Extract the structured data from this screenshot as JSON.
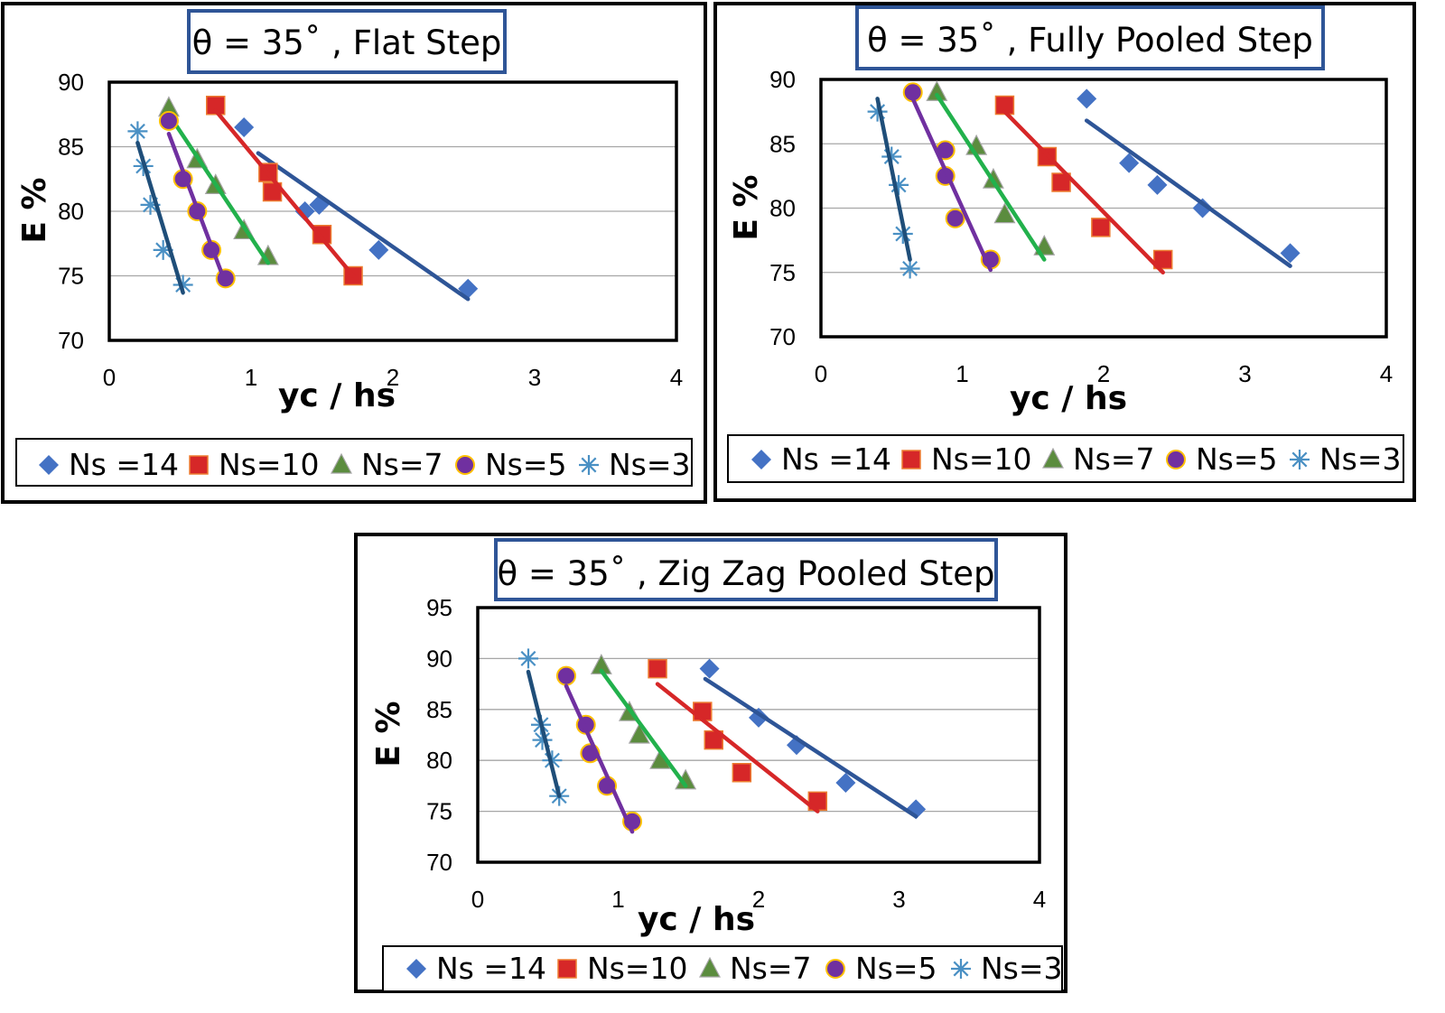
{
  "chart_data": [
    {
      "type": "scatter",
      "title": "θ = 35˚ , Flat Step",
      "xlabel": "yc / hs",
      "ylabel": "E %",
      "xlim": [
        0,
        4
      ],
      "ylim": [
        70,
        90
      ],
      "xticks": [
        0,
        1,
        2,
        3,
        4
      ],
      "yticks": [
        70,
        75,
        80,
        85,
        90
      ],
      "grid": "horizontal",
      "legend": "bottom",
      "series": [
        {
          "name": "Ns =14",
          "marker": "diamond",
          "color": "#4472C4",
          "line_color": "#2E5597",
          "x": [
            0.95,
            1.38,
            1.48,
            1.9,
            2.53
          ],
          "y": [
            86.5,
            80.0,
            80.5,
            77.0,
            74.0
          ],
          "trend": [
            [
              1.05,
              84.5
            ],
            [
              2.53,
              73.2
            ]
          ]
        },
        {
          "name": "Ns=10",
          "marker": "square",
          "color": "#D62728",
          "line_color": "#D62728",
          "x": [
            0.75,
            1.12,
            1.15,
            1.5,
            1.72
          ],
          "y": [
            88.2,
            83.0,
            81.5,
            78.2,
            75.0
          ],
          "trend": [
            [
              0.75,
              87.8
            ],
            [
              1.72,
              75.0
            ]
          ]
        },
        {
          "name": "Ns=7",
          "marker": "triangle",
          "color": "#5B8C3E",
          "line_color": "#22B14C",
          "x": [
            0.42,
            0.62,
            0.75,
            0.95,
            1.12
          ],
          "y": [
            88.0,
            84.0,
            82.0,
            78.5,
            76.5
          ],
          "trend": [
            [
              0.42,
              87.5
            ],
            [
              1.12,
              76.0
            ]
          ]
        },
        {
          "name": "Ns=5",
          "marker": "circle",
          "color": "#7030A0",
          "line_color": "#7030A0",
          "x": [
            0.42,
            0.52,
            0.62,
            0.72,
            0.82
          ],
          "y": [
            87.0,
            82.5,
            80.0,
            77.0,
            74.8
          ],
          "trend": [
            [
              0.42,
              86.0
            ],
            [
              0.8,
              75.0
            ]
          ]
        },
        {
          "name": "Ns=3",
          "marker": "asterisk",
          "color": "#4A90C4",
          "line_color": "#1F4E79",
          "x": [
            0.2,
            0.24,
            0.29,
            0.38,
            0.52
          ],
          "y": [
            86.2,
            83.5,
            80.5,
            77.0,
            74.3
          ],
          "trend": [
            [
              0.2,
              85.3
            ],
            [
              0.52,
              73.7
            ]
          ]
        }
      ]
    },
    {
      "type": "scatter",
      "title": "θ = 35˚ , Fully Pooled Step",
      "xlabel": "yc / hs",
      "ylabel": "E %",
      "xlim": [
        0,
        4
      ],
      "ylim": [
        70,
        90
      ],
      "xticks": [
        0,
        1,
        2,
        3,
        4
      ],
      "yticks": [
        70,
        75,
        80,
        85,
        90
      ],
      "grid": "horizontal",
      "legend": "bottom",
      "series": [
        {
          "name": "Ns =14",
          "marker": "diamond",
          "color": "#4472C4",
          "line_color": "#2E5597",
          "x": [
            1.88,
            2.18,
            2.38,
            2.7,
            3.32
          ],
          "y": [
            88.5,
            83.5,
            81.8,
            80.0,
            76.5
          ],
          "trend": [
            [
              1.88,
              86.8
            ],
            [
              3.32,
              75.5
            ]
          ]
        },
        {
          "name": "Ns=10",
          "marker": "square",
          "color": "#D62728",
          "line_color": "#D62728",
          "x": [
            1.3,
            1.6,
            1.7,
            1.98,
            2.42
          ],
          "y": [
            88.0,
            84.0,
            82.0,
            78.5,
            76.0
          ],
          "trend": [
            [
              1.3,
              87.5
            ],
            [
              2.42,
              75.0
            ]
          ]
        },
        {
          "name": "Ns=7",
          "marker": "triangle",
          "color": "#5B8C3E",
          "line_color": "#22B14C",
          "x": [
            0.82,
            1.1,
            1.22,
            1.3,
            1.58
          ],
          "y": [
            89.0,
            84.8,
            82.2,
            79.5,
            77.0
          ],
          "trend": [
            [
              0.82,
              88.8
            ],
            [
              1.58,
              76.0
            ]
          ]
        },
        {
          "name": "Ns=5",
          "marker": "circle",
          "color": "#7030A0",
          "line_color": "#7030A0",
          "x": [
            0.65,
            0.88,
            0.88,
            0.95,
            1.2
          ],
          "y": [
            89.0,
            84.5,
            82.5,
            79.2,
            76.0
          ],
          "trend": [
            [
              0.65,
              88.5
            ],
            [
              1.2,
              75.2
            ]
          ]
        },
        {
          "name": "Ns=3",
          "marker": "asterisk",
          "color": "#4A90C4",
          "line_color": "#1F4E79",
          "x": [
            0.4,
            0.5,
            0.55,
            0.58,
            0.63
          ],
          "y": [
            87.5,
            84.0,
            81.8,
            78.0,
            75.3
          ],
          "trend": [
            [
              0.4,
              88.5
            ],
            [
              0.63,
              76.0
            ]
          ]
        }
      ]
    },
    {
      "type": "scatter",
      "title": "θ = 35˚ , Zig Zag Pooled Step",
      "xlabel": "yc / hs",
      "ylabel": "E %",
      "xlim": [
        0,
        4
      ],
      "ylim": [
        70,
        95
      ],
      "xticks": [
        0,
        1,
        2,
        3,
        4
      ],
      "yticks": [
        70,
        75,
        80,
        85,
        90,
        95
      ],
      "grid": "horizontal",
      "legend": "bottom",
      "series": [
        {
          "name": "Ns =14",
          "marker": "diamond",
          "color": "#4472C4",
          "line_color": "#2E5597",
          "x": [
            1.65,
            2.0,
            2.27,
            2.62,
            3.12
          ],
          "y": [
            89.0,
            84.2,
            81.5,
            77.8,
            75.2
          ],
          "trend": [
            [
              1.62,
              88.0
            ],
            [
              3.12,
              74.5
            ]
          ]
        },
        {
          "name": "Ns=10",
          "marker": "square",
          "color": "#D62728",
          "line_color": "#D62728",
          "x": [
            1.28,
            1.6,
            1.68,
            1.88,
            2.42
          ],
          "y": [
            89.0,
            84.8,
            82.0,
            78.8,
            76.0
          ],
          "trend": [
            [
              1.28,
              87.5
            ],
            [
              2.42,
              75.0
            ]
          ]
        },
        {
          "name": "Ns=7",
          "marker": "triangle",
          "color": "#5B8C3E",
          "line_color": "#22B14C",
          "x": [
            0.88,
            1.08,
            1.15,
            1.3,
            1.48
          ],
          "y": [
            89.3,
            84.7,
            82.5,
            80.0,
            78.0
          ],
          "trend": [
            [
              0.88,
              88.8
            ],
            [
              1.48,
              77.5
            ]
          ]
        },
        {
          "name": "Ns=5",
          "marker": "circle",
          "color": "#7030A0",
          "line_color": "#7030A0",
          "x": [
            0.63,
            0.77,
            0.8,
            0.92,
            1.1
          ],
          "y": [
            88.3,
            83.5,
            80.7,
            77.5,
            74.0
          ],
          "trend": [
            [
              0.63,
              87.3
            ],
            [
              1.1,
              73.0
            ]
          ]
        },
        {
          "name": "Ns=3",
          "marker": "asterisk",
          "color": "#4A90C4",
          "line_color": "#1F4E79",
          "x": [
            0.36,
            0.45,
            0.46,
            0.53,
            0.58
          ],
          "y": [
            90.0,
            83.5,
            82.0,
            80.0,
            76.5
          ],
          "trend": [
            [
              0.36,
              88.7
            ],
            [
              0.58,
              76.5
            ]
          ]
        }
      ]
    }
  ]
}
